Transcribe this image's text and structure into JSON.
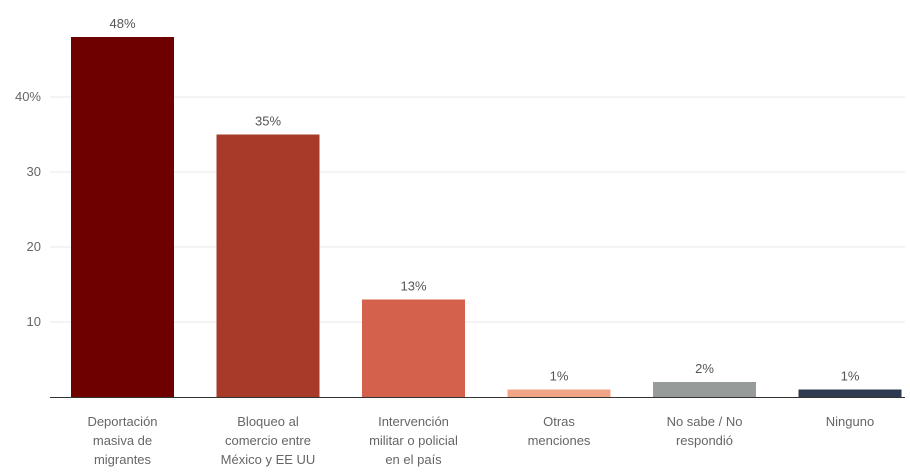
{
  "chart_data": {
    "type": "bar",
    "title": "",
    "xlabel": "",
    "ylabel": "",
    "ylim": [
      0,
      52
    ],
    "yticks": [
      {
        "value": 10,
        "label": "10"
      },
      {
        "value": 20,
        "label": "20"
      },
      {
        "value": 30,
        "label": "30"
      },
      {
        "value": 40,
        "label": "40%"
      }
    ],
    "grid": true,
    "categories": [
      [
        "Deportación",
        "masiva de",
        "migrantes"
      ],
      [
        "Bloqueo al",
        "comercio entre",
        "México y EE UU"
      ],
      [
        "Intervención",
        "militar o policial",
        "en el país"
      ],
      [
        "Otras",
        "menciones"
      ],
      [
        "No sabe / No",
        "respondió"
      ],
      [
        "Ninguno"
      ]
    ],
    "values": [
      48,
      35,
      13,
      1,
      2,
      1
    ],
    "value_labels": [
      "48%",
      "35%",
      "13%",
      "1%",
      "2%",
      "1%"
    ],
    "colors": [
      "#6e0000",
      "#a83a2a",
      "#d4614b",
      "#f2a487",
      "#979c9a",
      "#2e3a4f"
    ]
  }
}
